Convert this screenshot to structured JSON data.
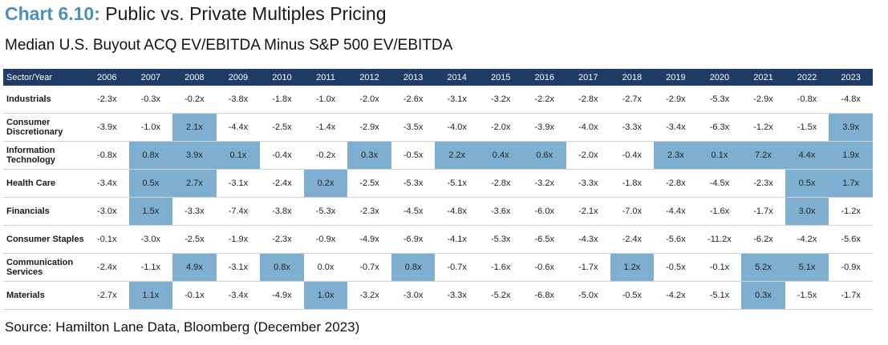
{
  "title": {
    "chart_num": "Chart 6.10:",
    "text": "Public vs. Private Multiples Pricing"
  },
  "subtitle": "Median U.S. Buyout ACQ EV/EBITDA Minus S&P 500 EV/EBITDA",
  "source": "Source: Hamilton Lane Data, Bloomberg (December 2023)",
  "colors": {
    "header_bg": "#1f3b67",
    "highlight": "#7fafd0",
    "title_accent": "#4a8ec0"
  },
  "chart_data": {
    "type": "table",
    "header_label": "Sector/Year",
    "columns": [
      "2006",
      "2007",
      "2008",
      "2009",
      "2010",
      "2011",
      "2012",
      "2013",
      "2014",
      "2015",
      "2016",
      "2017",
      "2018",
      "2019",
      "2020",
      "2021",
      "2022",
      "2023"
    ],
    "rows": [
      {
        "label": "Industrials",
        "values": [
          "-2.3x",
          "-0.3x",
          "-0.2x",
          "-3.8x",
          "-1.8x",
          "-1.0x",
          "-2.0x",
          "-2.6x",
          "-3.1x",
          "-3.2x",
          "-2.2x",
          "-2.8x",
          "-2.7x",
          "-2.9x",
          "-5.3x",
          "-2.9x",
          "-0.8x",
          "-4.8x"
        ]
      },
      {
        "label": "Consumer Discretionary",
        "values": [
          "-3.9x",
          "-1.0x",
          "2.1x",
          "-4.4x",
          "-2.5x",
          "-1.4x",
          "-2.9x",
          "-3.5x",
          "-4.0x",
          "-2.0x",
          "-3.9x",
          "-4.0x",
          "-3.3x",
          "-3.4x",
          "-6.3x",
          "-1.2x",
          "-1.5x",
          "3.9x"
        ]
      },
      {
        "label": "Information Technology",
        "values": [
          "-0.8x",
          "0.8x",
          "3.9x",
          "0.1x",
          "-0.4x",
          "-0.2x",
          "0.3x",
          "-0.5x",
          "2.2x",
          "0.4x",
          "0.6x",
          "-2.0x",
          "-0.4x",
          "2.3x",
          "0.1x",
          "7.2x",
          "4.4x",
          "1.9x"
        ]
      },
      {
        "label": "Health Care",
        "values": [
          "-3.4x",
          "0.5x",
          "2.7x",
          "-3.1x",
          "-2.4x",
          "0.2x",
          "-2.5x",
          "-5.3x",
          "-5.1x",
          "-2.8x",
          "-3.2x",
          "-3.3x",
          "-1.8x",
          "-2.8x",
          "-4.5x",
          "-2.3x",
          "0.5x",
          "1.7x"
        ]
      },
      {
        "label": "Financials",
        "values": [
          "-3.0x",
          "1.5x",
          "-3.3x",
          "-7.4x",
          "-3.8x",
          "-5.3x",
          "-2.3x",
          "-4.5x",
          "-4.8x",
          "-3.6x",
          "-6.0x",
          "-2.1x",
          "-7.0x",
          "-4.4x",
          "-1.6x",
          "-1.7x",
          "3.0x",
          "-1.2x"
        ]
      },
      {
        "label": "Consumer Staples",
        "values": [
          "-0.1x",
          "-3.0x",
          "-2.5x",
          "-1.9x",
          "-2.3x",
          "-0.9x",
          "-4.9x",
          "-6.9x",
          "-4.1x",
          "-5.3x",
          "-6.5x",
          "-4.3x",
          "-2.4x",
          "-5.6x",
          "-11.2x",
          "-6.2x",
          "-4.2x",
          "-5.6x"
        ]
      },
      {
        "label": "Communication Services",
        "values": [
          "-2.4x",
          "-1.1x",
          "4.9x",
          "-3.1x",
          "0.8x",
          "0.0x",
          "-0.7x",
          "0.8x",
          "-0.7x",
          "-1.6x",
          "-0.6x",
          "-1.7x",
          "1.2x",
          "-0.5x",
          "-0.1x",
          "5.2x",
          "5.1x",
          "-0.9x"
        ]
      },
      {
        "label": "Materials",
        "values": [
          "-2.7x",
          "1.1x",
          "-0.1x",
          "-3.4x",
          "-4.9x",
          "1.0x",
          "-3.2x",
          "-3.0x",
          "-3.3x",
          "-5.2x",
          "-6.8x",
          "-5.0x",
          "-0.5x",
          "-4.2x",
          "-5.1x",
          "0.3x",
          "-1.5x",
          "-1.7x"
        ]
      }
    ],
    "highlighted": [
      [
        false,
        false,
        false,
        false,
        false,
        false,
        false,
        false,
        false,
        false,
        false,
        false,
        false,
        false,
        false,
        false,
        false,
        false
      ],
      [
        false,
        false,
        true,
        false,
        false,
        false,
        false,
        false,
        false,
        false,
        false,
        false,
        false,
        false,
        false,
        false,
        false,
        true
      ],
      [
        false,
        true,
        true,
        true,
        false,
        false,
        true,
        false,
        true,
        true,
        true,
        false,
        false,
        true,
        true,
        true,
        true,
        true
      ],
      [
        false,
        true,
        true,
        false,
        false,
        true,
        false,
        false,
        false,
        false,
        false,
        false,
        false,
        false,
        false,
        false,
        true,
        true
      ],
      [
        false,
        true,
        false,
        false,
        false,
        false,
        false,
        false,
        false,
        false,
        false,
        false,
        false,
        false,
        false,
        false,
        true,
        false
      ],
      [
        false,
        false,
        false,
        false,
        false,
        false,
        false,
        false,
        false,
        false,
        false,
        false,
        false,
        false,
        false,
        false,
        false,
        false
      ],
      [
        false,
        false,
        true,
        false,
        true,
        false,
        false,
        true,
        false,
        false,
        false,
        false,
        true,
        false,
        false,
        true,
        true,
        false
      ],
      [
        false,
        true,
        false,
        false,
        false,
        true,
        false,
        false,
        false,
        false,
        false,
        false,
        false,
        false,
        false,
        true,
        false,
        false
      ]
    ]
  }
}
